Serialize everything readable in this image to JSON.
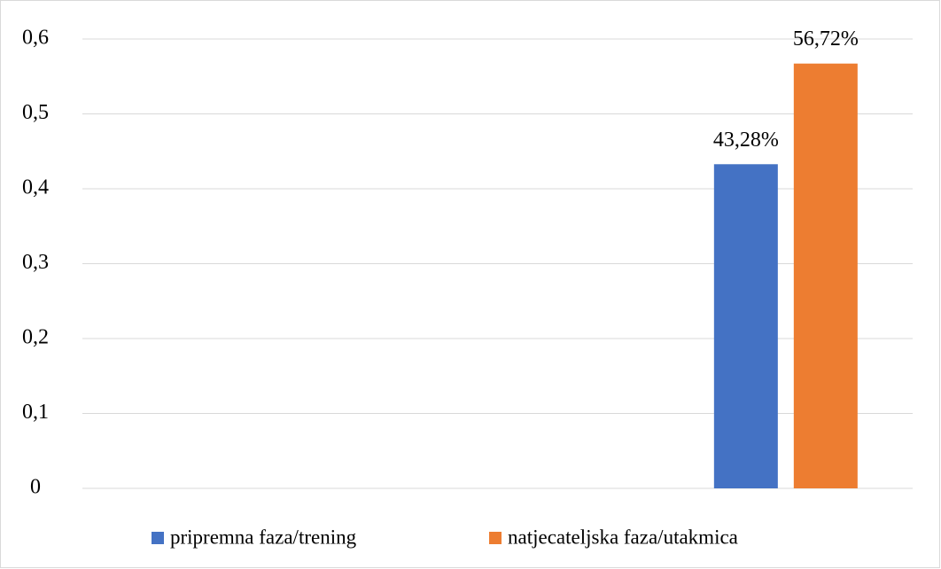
{
  "chart_data": {
    "type": "bar",
    "categories": [
      null,
      null,
      null
    ],
    "series": [
      {
        "name": "pripremna faza/trening",
        "color": "#4472c4",
        "values": [
          null,
          null,
          0.4328
        ],
        "value_labels": [
          null,
          null,
          "43,28%"
        ]
      },
      {
        "name": "natjecateljska faza/utakmica",
        "color": "#ed7d31",
        "values": [
          null,
          null,
          0.5672
        ],
        "value_labels": [
          null,
          null,
          "56,72%"
        ]
      }
    ],
    "ylim": [
      0,
      0.6
    ],
    "yticks": [
      0,
      {
        "value": 0.1,
        "label": "0,1"
      },
      {
        "value": 0.2,
        "label": "0,2"
      },
      {
        "value": 0.3,
        "label": "0,3"
      },
      {
        "value": 0.4,
        "label": "0,4"
      },
      {
        "value": 0.5,
        "label": "0,5"
      },
      {
        "value": 0.6,
        "label": "0,6"
      }
    ],
    "grid": true,
    "legend": "bottom"
  }
}
